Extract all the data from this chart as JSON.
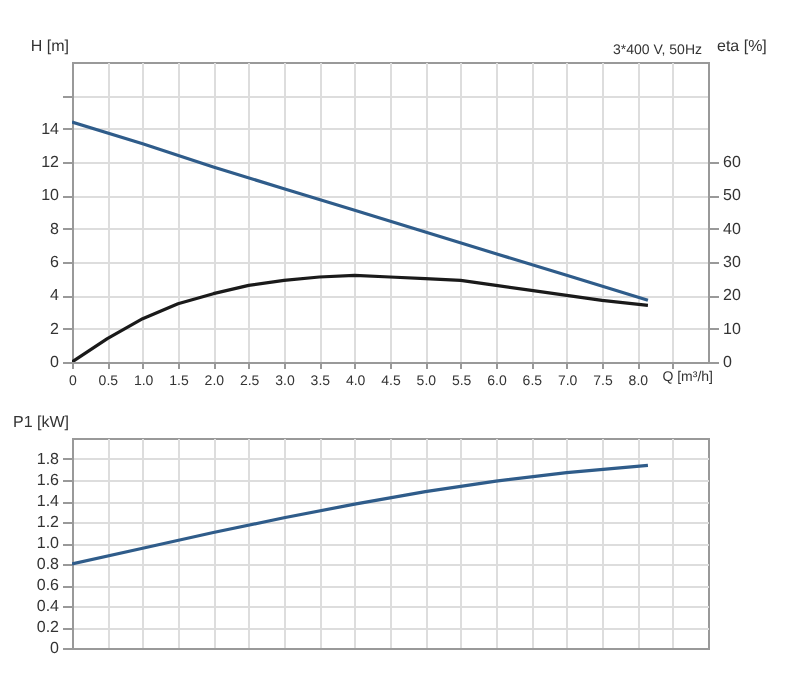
{
  "chart_data": [
    {
      "type": "line",
      "xlabel": "Q [m³/h]",
      "ylabel": "H [m]",
      "y2label": "eta [%]",
      "annotations": [
        "3*400 V, 50Hz"
      ],
      "xlim": [
        0,
        9
      ],
      "xticks": [
        {
          "value": 0,
          "label": "0"
        },
        0.5,
        {
          "value": 1,
          "label": "1.0"
        },
        1.5,
        {
          "value": 2,
          "label": "2.0"
        },
        2.5,
        {
          "value": 3,
          "label": "3.0"
        },
        3.5,
        {
          "value": 4,
          "label": "4.0"
        },
        4.5,
        {
          "value": 5,
          "label": "5.0"
        },
        5.5,
        {
          "value": 6,
          "label": "6.0"
        },
        6.5,
        {
          "value": 7,
          "label": "7.0"
        },
        7.5,
        {
          "value": 8,
          "label": "8.0"
        },
        {
          "value": 8.5,
          "label": null
        }
      ],
      "ylim": [
        0,
        18
      ],
      "yticks": [
        0,
        2,
        4,
        6,
        8,
        10,
        12,
        14,
        {
          "value": 16,
          "label": null
        }
      ],
      "y2lim": [
        0,
        90
      ],
      "y2ticks": [
        0,
        10,
        20,
        30,
        40,
        50,
        60
      ],
      "grid": true,
      "marker": "none",
      "line_style": "solid",
      "series": [
        {
          "color": "#2f5c8a",
          "x": [
            0,
            1,
            2,
            3,
            4,
            5,
            6,
            7,
            8.15
          ],
          "values": [
            14.4,
            13.1,
            11.7,
            10.4,
            9.1,
            7.8,
            6.5,
            5.2,
            3.7
          ]
        },
        {
          "color": "#1a1a1a",
          "axis": "y2",
          "x": [
            0,
            0.5,
            1,
            1.5,
            2,
            2.5,
            3,
            3.5,
            4,
            4.5,
            5,
            5.5,
            6,
            6.5,
            7,
            7.5,
            8.15
          ],
          "values": [
            0,
            7,
            13,
            17.5,
            20.5,
            23,
            24.5,
            25.5,
            26,
            25.5,
            25,
            24.5,
            23,
            21.5,
            20,
            18.5,
            17
          ]
        }
      ]
    },
    {
      "type": "line",
      "ylabel": "P1 [kW]",
      "tick_labels": "y",
      "xlim": [
        0,
        9
      ],
      "xticks": [
        0,
        0.5,
        1,
        1.5,
        2,
        2.5,
        3,
        3.5,
        4,
        4.5,
        5,
        5.5,
        6,
        6.5,
        7,
        7.5,
        8,
        8.5
      ],
      "ylim": [
        0,
        2
      ],
      "yticks": [
        {
          "value": 0,
          "label": "0"
        },
        0.2,
        0.4,
        0.6,
        0.8,
        {
          "value": 1,
          "label": "1.0"
        },
        1.2,
        1.4,
        1.6,
        1.8
      ],
      "grid": true,
      "marker": "none",
      "line_style": "solid",
      "series": [
        {
          "color": "#2f5c8a",
          "x": [
            0,
            1,
            2,
            3,
            4,
            5,
            6,
            7,
            8.15
          ],
          "values": [
            0.8,
            0.95,
            1.1,
            1.24,
            1.37,
            1.49,
            1.59,
            1.67,
            1.74
          ]
        }
      ]
    }
  ]
}
